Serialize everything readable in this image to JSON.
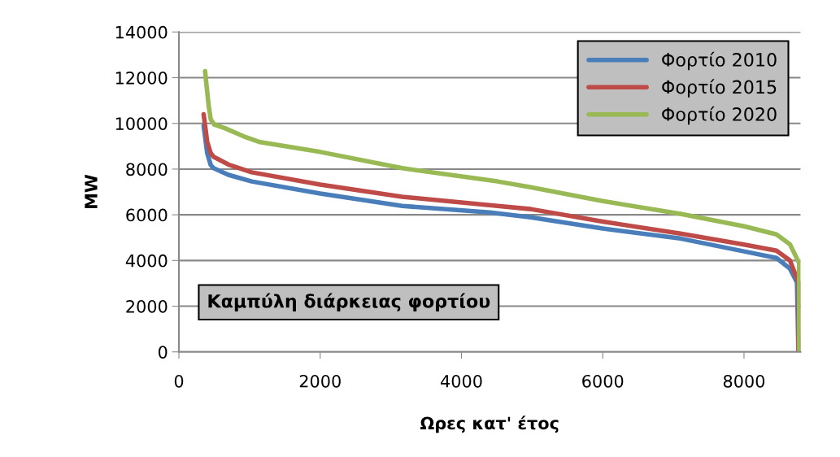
{
  "chart_data": {
    "type": "line",
    "xlabel": "Ωρες κατ' έτος",
    "ylabel": "MW",
    "xlim": [
      0,
      8800
    ],
    "xticks": [
      0,
      2000,
      4000,
      6000,
      8000
    ],
    "ylim": [
      0,
      14000
    ],
    "yticks": [
      0,
      2000,
      4000,
      6000,
      8000,
      10000,
      12000,
      14000
    ],
    "grid": "y",
    "legend": "top right",
    "marker": "none",
    "line_style": "solid",
    "annotations": [
      "Καμπύλη διάρκειας φορτίου"
    ],
    "series": [
      {
        "name": "Φορτίο 2010",
        "color": "#4a7ebb",
        "x": [
          350,
          400,
          450,
          490,
          700,
          1030,
          2000,
          3160,
          4400,
          4980,
          6000,
          7100,
          8000,
          8460,
          8650,
          8750,
          8770
        ],
        "values": [
          9900,
          8700,
          8180,
          8040,
          7750,
          7460,
          6930,
          6390,
          6100,
          5890,
          5400,
          4960,
          4400,
          4110,
          3640,
          3040,
          70
        ]
      },
      {
        "name": "Φορτίο 2015",
        "color": "#be4b48",
        "x": [
          350,
          400,
          450,
          490,
          700,
          1030,
          2000,
          3160,
          4510,
          4980,
          6000,
          7100,
          8000,
          8460,
          8650,
          8770,
          8770
        ],
        "values": [
          10400,
          9200,
          8700,
          8540,
          8200,
          7860,
          7320,
          6790,
          6390,
          6250,
          5700,
          5180,
          4700,
          4430,
          4000,
          3040,
          70
        ]
      },
      {
        "name": "Φορτίο 2020",
        "color": "#98b954",
        "x": [
          370,
          420,
          450,
          500,
          650,
          920,
          1150,
          2000,
          3160,
          4510,
          4980,
          6000,
          7100,
          8000,
          8460,
          8650,
          8780,
          8780
        ],
        "values": [
          12290,
          10800,
          10180,
          9950,
          9790,
          9430,
          9180,
          8750,
          8040,
          7460,
          7210,
          6600,
          6040,
          5500,
          5140,
          4710,
          3890,
          70
        ]
      }
    ]
  }
}
